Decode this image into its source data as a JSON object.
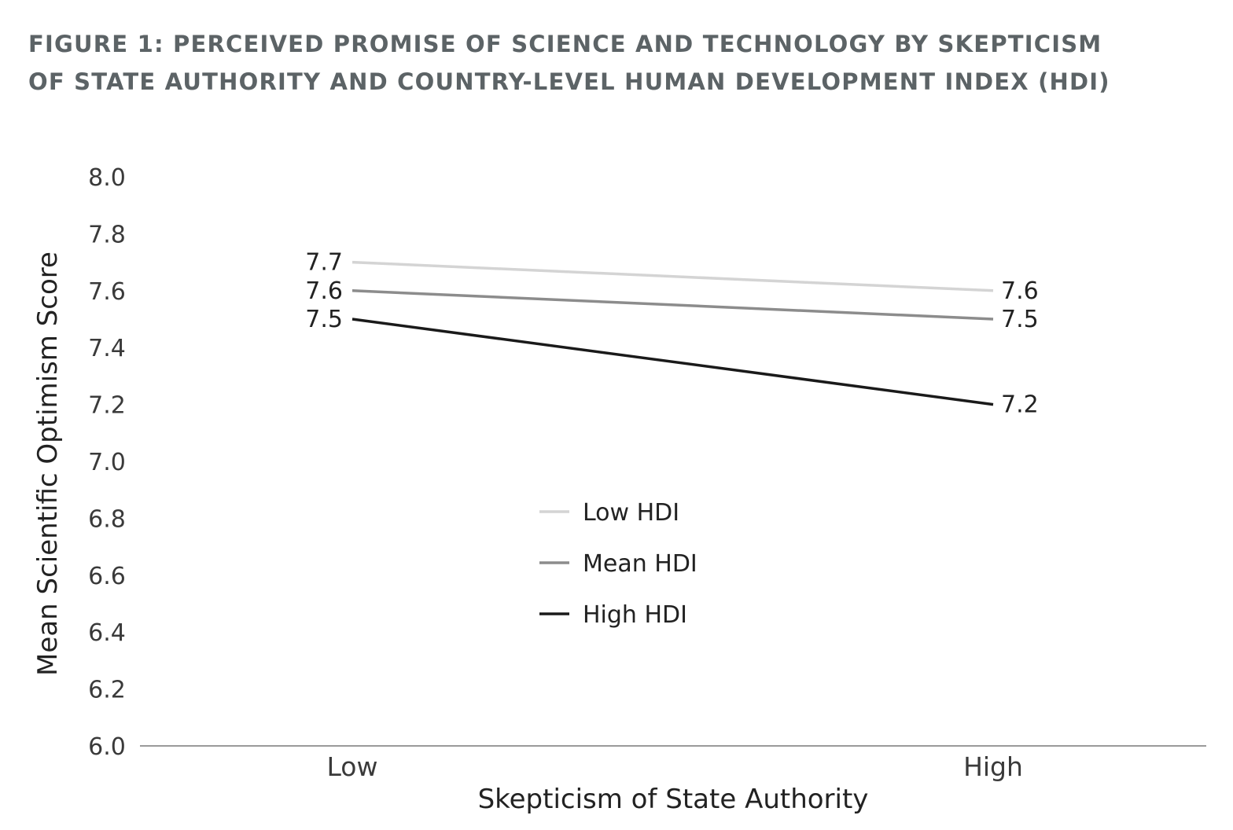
{
  "title_lines": [
    "FIGURE 1: PERCEIVED PROMISE OF SCIENCE AND TECHNOLOGY BY SKEPTICISM",
    "OF STATE AUTHORITY AND COUNTRY-LEVEL HUMAN DEVELOPMENT INDEX (HDI)"
  ],
  "colors": {
    "title": "#5c6366",
    "axis_line": "#9a9a9a",
    "low_hdi": "#d4d4d4",
    "mean_hdi": "#8c8c8c",
    "high_hdi": "#1a1a1a"
  },
  "chart_data": {
    "type": "line",
    "title": "FIGURE 1: PERCEIVED PROMISE OF SCIENCE AND TECHNOLOGY BY SKEPTICISM OF STATE AUTHORITY AND COUNTRY-LEVEL HUMAN DEVELOPMENT INDEX (HDI)",
    "xlabel": "Skepticism of State Authority",
    "ylabel": "Mean Scientific Optimism Score",
    "categories": [
      "Low",
      "High"
    ],
    "ylim": [
      6.0,
      8.0
    ],
    "yticks": [
      "6.0",
      "6.2",
      "6.4",
      "6.6",
      "6.8",
      "7.0",
      "7.2",
      "7.4",
      "7.6",
      "7.8",
      "8.0"
    ],
    "grid": false,
    "legend_position": "center",
    "series": [
      {
        "name": "Low HDI",
        "values": [
          7.7,
          7.6
        ],
        "labels": [
          "7.7",
          "7.6"
        ],
        "color": "#d4d4d4"
      },
      {
        "name": "Mean HDI",
        "values": [
          7.6,
          7.5
        ],
        "labels": [
          "7.6",
          "7.5"
        ],
        "color": "#8c8c8c"
      },
      {
        "name": "High HDI",
        "values": [
          7.5,
          7.2
        ],
        "labels": [
          "7.5",
          "7.2"
        ],
        "color": "#1a1a1a"
      }
    ]
  }
}
